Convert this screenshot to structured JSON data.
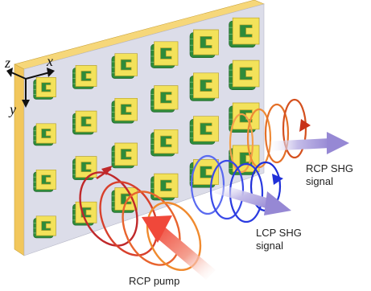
{
  "axes": {
    "z": "z",
    "x": "x",
    "y": "y"
  },
  "labels": {
    "rcp_shg_line1": "RCP SHG",
    "rcp_shg_line2": "signal",
    "lcp_shg_line1": "LCP SHG",
    "lcp_shg_line2": "signal",
    "rcp_pump": "RCP pump"
  },
  "array": {
    "rows": 4,
    "cols": 6
  },
  "colors": {
    "substrate_face": "#dadbe8",
    "substrate_edge": "#f2c75c",
    "resonator_gold": "#f3e25a",
    "resonator_green": "#2e8b3a",
    "pump_beam": "#f05a4a",
    "rcp_helix": "#e06a1c",
    "lcp_helix": "#2436e0",
    "signal_arrow": "#9c8fd6"
  }
}
